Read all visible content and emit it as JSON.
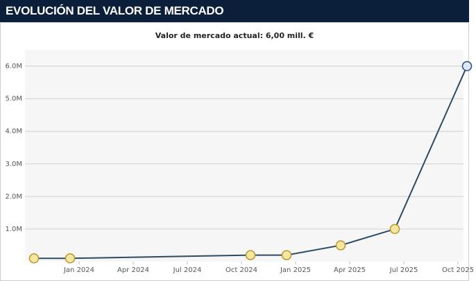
{
  "chart_data": {
    "type": "line",
    "title": "EVOLUCIÓN DEL VALOR DE MERCADO",
    "subtitle": "Valor de mercado actual: 6,00 mill. €",
    "x": [
      "2023-10",
      "2023-12",
      "2024-10",
      "2024-12",
      "2025-03",
      "2025-06",
      "2025-10"
    ],
    "series": [
      {
        "color": "#2d4a63",
        "values": [
          100000,
          100000,
          200000,
          200000,
          500000,
          1000000,
          6000000
        ]
      }
    ],
    "xlim": [
      "2023-10",
      "2025-10"
    ],
    "xticks": [
      {
        "value": "2024-01",
        "label": "Jan 2024"
      },
      {
        "value": "2024-04",
        "label": "Apr 2024"
      },
      {
        "value": "2024-07",
        "label": "Jul 2024"
      },
      {
        "value": "2024-10",
        "label": "Oct 2024"
      },
      {
        "value": "2025-01",
        "label": "Jan 2025"
      },
      {
        "value": "2025-04",
        "label": "Apr 2025"
      },
      {
        "value": "2025-07",
        "label": "Jul 2025"
      },
      {
        "value": "2025-10",
        "label": "Oct 2025"
      }
    ],
    "ylim": [
      0,
      6500000
    ],
    "yticks": [
      {
        "value": 1000000,
        "label": "1.0M"
      },
      {
        "value": 2000000,
        "label": "2.0M"
      },
      {
        "value": 3000000,
        "label": "3.0M"
      },
      {
        "value": 4000000,
        "label": "4.0M"
      },
      {
        "value": 5000000,
        "label": "5.0M"
      },
      {
        "value": 6000000,
        "label": "6.0M"
      }
    ],
    "grid": true
  }
}
